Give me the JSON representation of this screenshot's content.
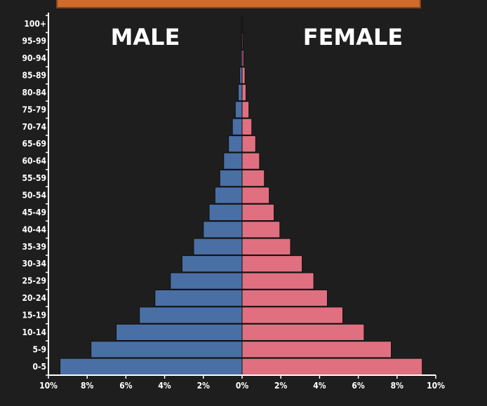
{
  "chart_data": {
    "type": "bar",
    "orientation": "horizontal-population-pyramid",
    "title": "",
    "headers": {
      "male": "MALE",
      "female": "FEMALE"
    },
    "categories": [
      "0-5",
      "5-9",
      "10-14",
      "15-19",
      "20-24",
      "25-29",
      "30-34",
      "35-39",
      "40-44",
      "45-49",
      "50-54",
      "55-59",
      "60-64",
      "65-69",
      "70-74",
      "75-79",
      "80-84",
      "85-89",
      "90-94",
      "95-99",
      "100+"
    ],
    "series": [
      {
        "name": "MALE",
        "color": "#4a6fa5",
        "values": [
          9.4,
          7.8,
          6.5,
          5.3,
          4.5,
          3.7,
          3.1,
          2.5,
          2.0,
          1.7,
          1.4,
          1.15,
          0.95,
          0.7,
          0.5,
          0.35,
          0.2,
          0.12,
          0.06,
          0.04,
          0.03
        ]
      },
      {
        "name": "FEMALE",
        "color": "#e07080",
        "values": [
          9.3,
          7.7,
          6.3,
          5.2,
          4.4,
          3.7,
          3.1,
          2.5,
          1.95,
          1.65,
          1.4,
          1.15,
          0.9,
          0.7,
          0.5,
          0.35,
          0.2,
          0.15,
          0.08,
          0.05,
          0.04
        ]
      }
    ],
    "xlim": [
      -10,
      10
    ],
    "xticks": [
      "10%",
      "8%",
      "6%",
      "4%",
      "2%",
      "0%",
      "2%",
      "4%",
      "6%",
      "8%",
      "10%"
    ],
    "grid": false
  }
}
